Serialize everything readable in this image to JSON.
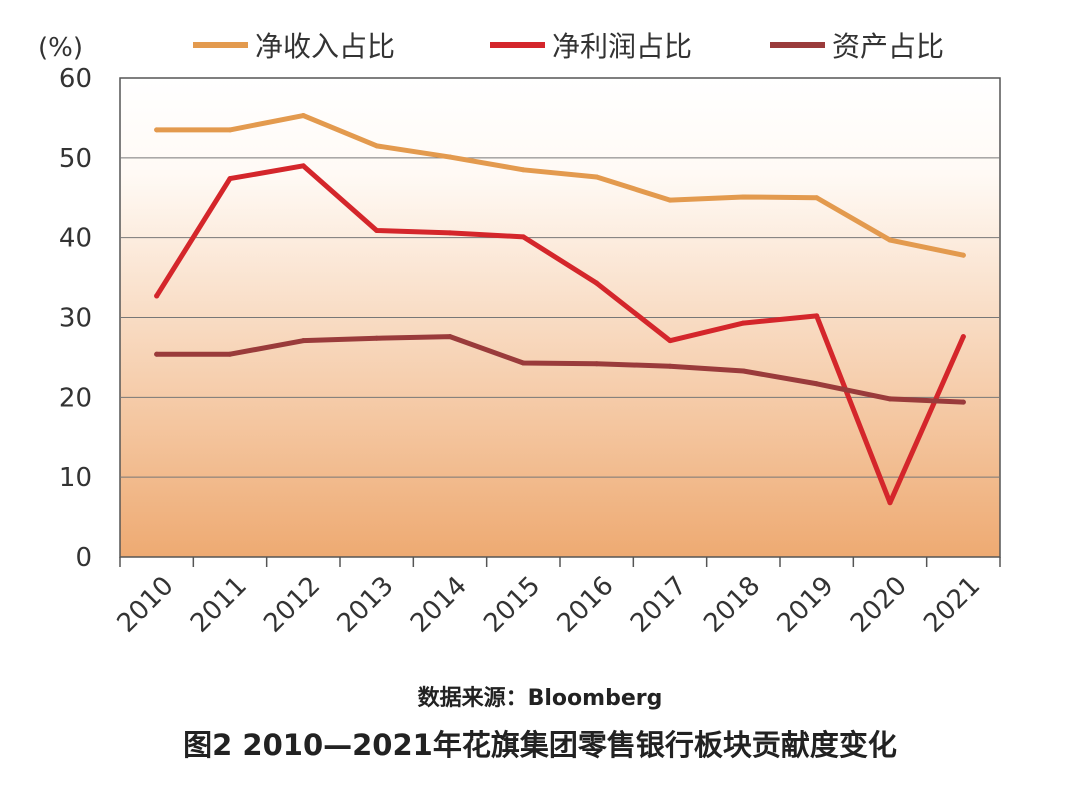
{
  "chart_data": {
    "type": "line",
    "unit_label": "(%)",
    "categories": [
      "2010",
      "2011",
      "2012",
      "2013",
      "2014",
      "2015",
      "2016",
      "2017",
      "2018",
      "2019",
      "2020",
      "2021"
    ],
    "ylim": [
      0,
      60
    ],
    "yticks": [
      0,
      10,
      20,
      30,
      40,
      50,
      60
    ],
    "grid": true,
    "legend_position": "top",
    "series": [
      {
        "name": "净收入占比",
        "color": "#e39a4e",
        "values": [
          53.5,
          53.5,
          55.3,
          51.5,
          50.1,
          48.5,
          47.6,
          44.7,
          45.1,
          45.0,
          39.7,
          37.8
        ]
      },
      {
        "name": "净利润占比",
        "color": "#d4262b",
        "values": [
          32.7,
          47.4,
          49.0,
          40.9,
          40.6,
          40.1,
          34.3,
          27.1,
          29.3,
          30.2,
          6.8,
          27.6
        ]
      },
      {
        "name": "资产占比",
        "color": "#9a3b3b",
        "values": [
          25.4,
          25.4,
          27.1,
          27.4,
          27.6,
          24.3,
          24.2,
          23.9,
          23.3,
          21.7,
          19.8,
          19.4
        ]
      }
    ]
  },
  "source": "数据来源：Bloomberg",
  "caption": "图2  2010—2021年花旗集团零售银行板块贡献度变化"
}
